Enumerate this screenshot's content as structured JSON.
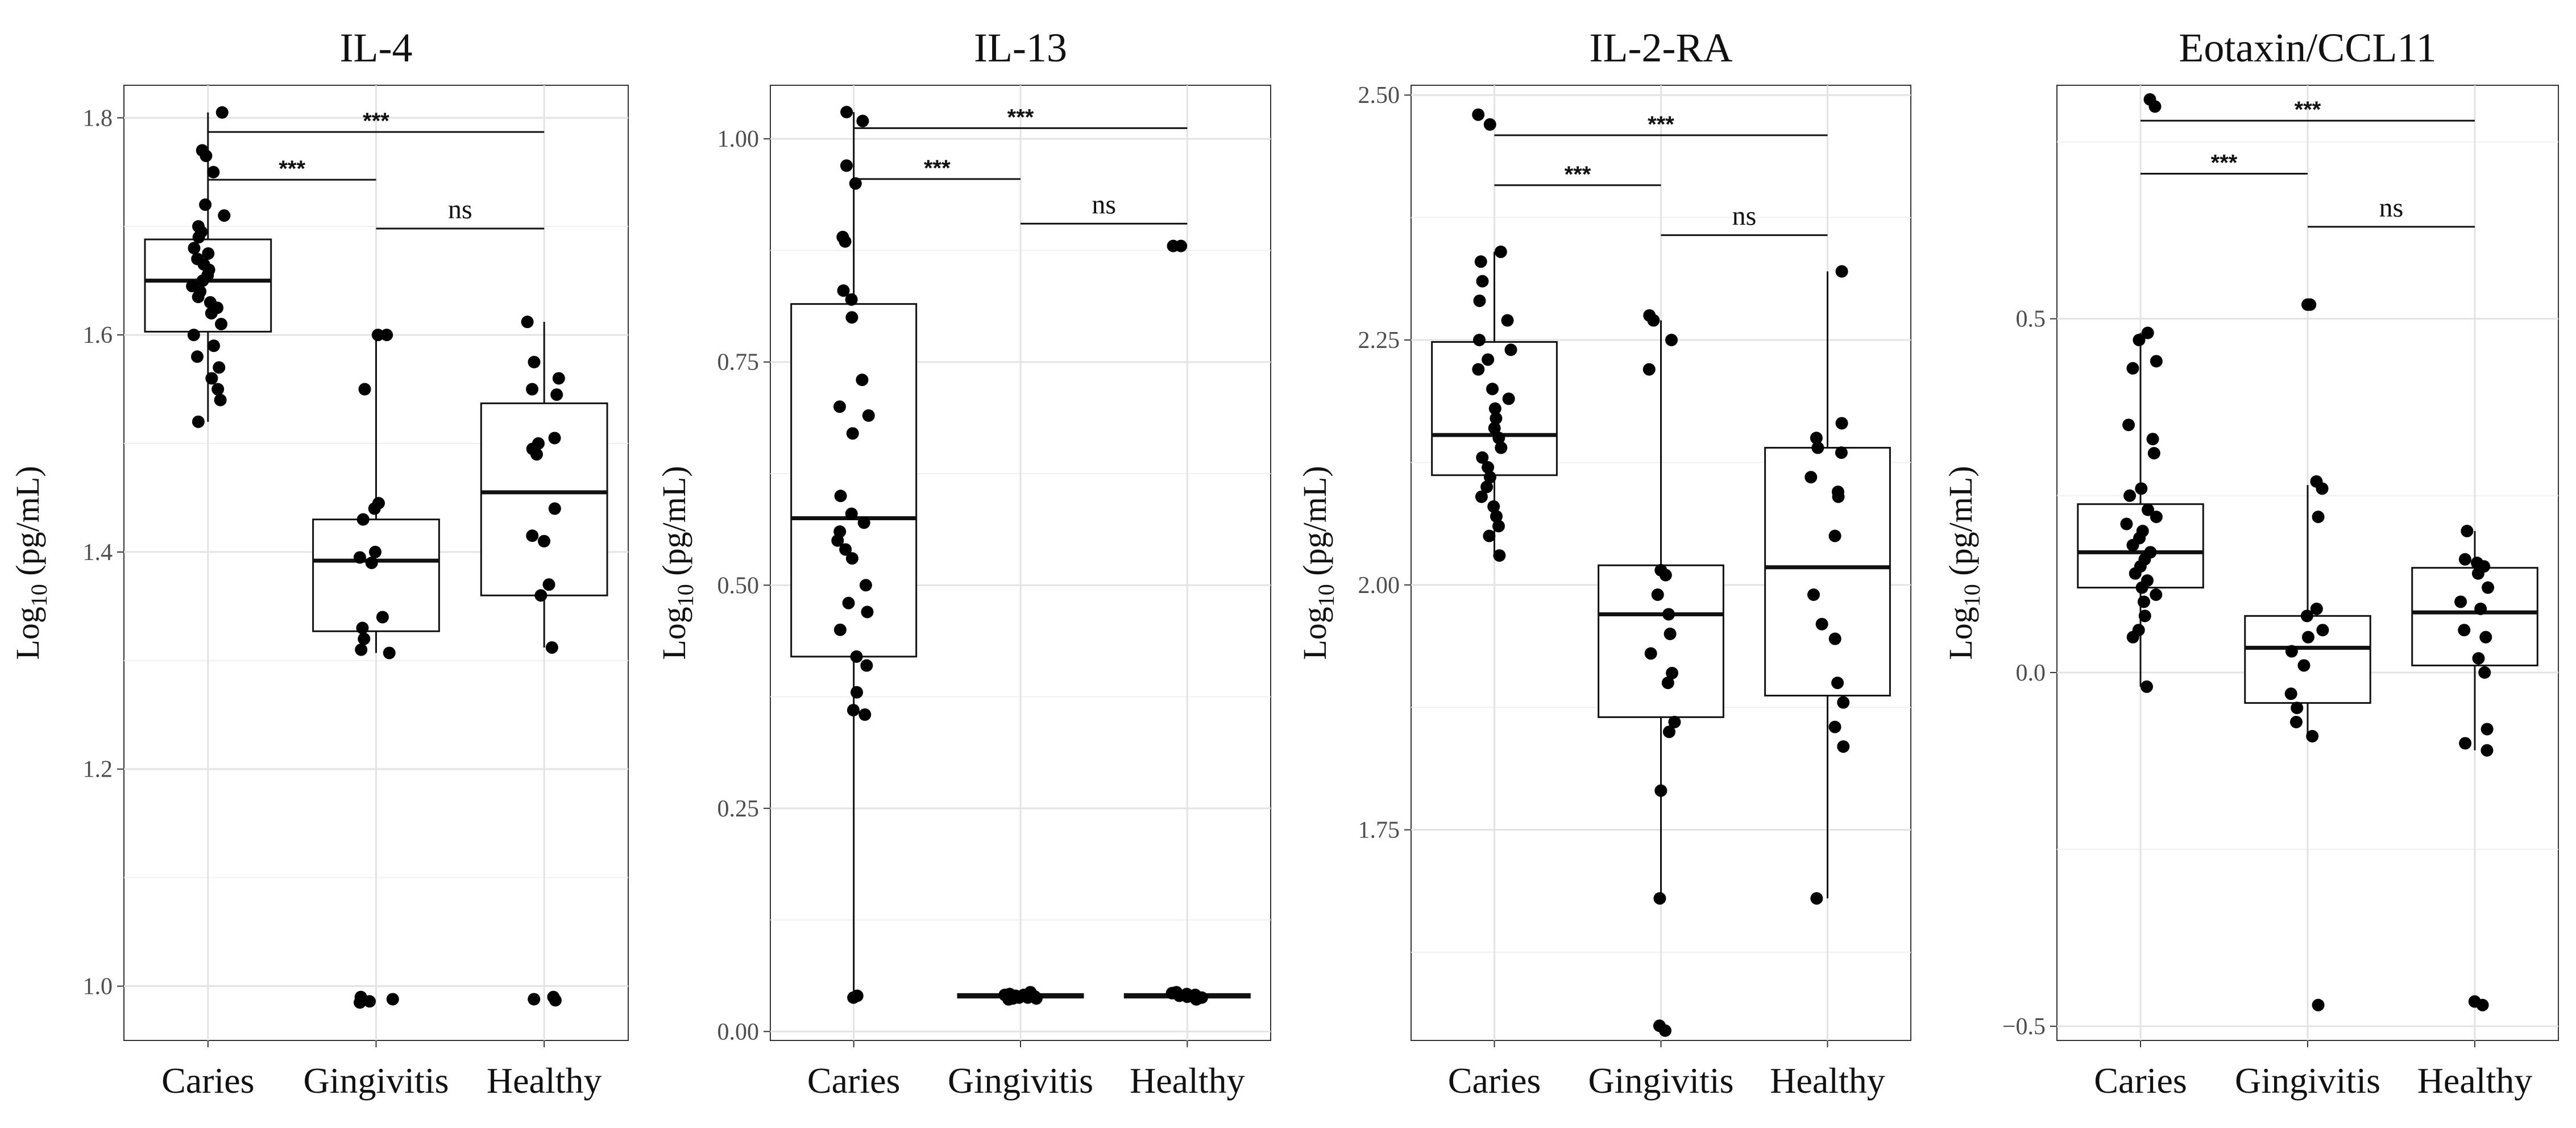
{
  "figure": {
    "panels": [
      "IL-4",
      "IL-13",
      "IL-2-RA",
      "Eotaxin/CCL11"
    ]
  },
  "chart_data": [
    {
      "type": "box",
      "title": "IL-4",
      "ylabel": "Log10 (pg/mL)",
      "ylabel_main": "Log",
      "ylabel_sub": "10",
      "ylabel_rest": " (pg/mL)",
      "xlabel": "",
      "categories": [
        "Caries",
        "Gingivitis",
        "Healthy"
      ],
      "ylim": [
        0.95,
        1.83
      ],
      "yticks": [
        1.0,
        1.2,
        1.4,
        1.6,
        1.8
      ],
      "ytick_labels": [
        "1.0",
        "1.2",
        "1.4",
        "1.6",
        "1.8"
      ],
      "grid": true,
      "boxes": [
        {
          "category": "Caries",
          "whisker_low": 1.52,
          "q1": 1.603,
          "median": 1.65,
          "q3": 1.688,
          "whisker_high": 1.805,
          "points": [
            1.805,
            1.77,
            1.765,
            1.75,
            1.72,
            1.71,
            1.7,
            1.695,
            1.69,
            1.68,
            1.675,
            1.67,
            1.665,
            1.66,
            1.655,
            1.65,
            1.645,
            1.64,
            1.635,
            1.63,
            1.625,
            1.62,
            1.61,
            1.6,
            1.59,
            1.58,
            1.57,
            1.56,
            1.55,
            1.54,
            1.52
          ]
        },
        {
          "category": "Gingivitis",
          "whisker_low": 1.307,
          "q1": 1.327,
          "median": 1.392,
          "q3": 1.43,
          "whisker_high": 1.6,
          "points": [
            1.6,
            1.6,
            1.55,
            1.445,
            1.44,
            1.43,
            1.4,
            1.395,
            1.39,
            1.34,
            1.33,
            1.32,
            1.31,
            1.307,
            0.99,
            0.988,
            0.986,
            0.985
          ]
        },
        {
          "category": "Healthy",
          "whisker_low": 1.312,
          "q1": 1.36,
          "median": 1.455,
          "q3": 1.537,
          "whisker_high": 1.612,
          "points": [
            1.612,
            1.575,
            1.56,
            1.55,
            1.545,
            1.505,
            1.5,
            1.495,
            1.49,
            1.44,
            1.415,
            1.41,
            1.37,
            1.36,
            1.312,
            0.99,
            0.988,
            0.987
          ]
        }
      ],
      "significance": [
        {
          "from": "Caries",
          "to": "Gingivitis",
          "y": 1.743,
          "label": "***"
        },
        {
          "from": "Caries",
          "to": "Healthy",
          "y": 1.787,
          "label": "***"
        },
        {
          "from": "Gingivitis",
          "to": "Healthy",
          "y": 1.698,
          "label": "ns"
        }
      ]
    },
    {
      "type": "box",
      "title": "IL-13",
      "ylabel": "Log10 (pg/mL)",
      "ylabel_main": "Log",
      "ylabel_sub": "10",
      "ylabel_rest": " (pg/mL)",
      "xlabel": "",
      "categories": [
        "Caries",
        "Gingivitis",
        "Healthy"
      ],
      "ylim": [
        -0.01,
        1.06
      ],
      "yticks": [
        0.0,
        0.25,
        0.5,
        0.75,
        1.0
      ],
      "ytick_labels": [
        "0.00",
        "0.25",
        "0.50",
        "0.75",
        "1.00"
      ],
      "grid": true,
      "boxes": [
        {
          "category": "Caries",
          "whisker_low": 0.04,
          "q1": 0.42,
          "median": 0.575,
          "q3": 0.815,
          "whisker_high": 1.03,
          "points": [
            1.03,
            1.02,
            0.97,
            0.95,
            0.89,
            0.885,
            0.83,
            0.82,
            0.8,
            0.73,
            0.7,
            0.69,
            0.67,
            0.6,
            0.58,
            0.57,
            0.56,
            0.55,
            0.54,
            0.53,
            0.5,
            0.48,
            0.47,
            0.45,
            0.42,
            0.41,
            0.38,
            0.36,
            0.355,
            0.04,
            0.038
          ]
        },
        {
          "category": "Gingivitis",
          "whisker_low": 0.037,
          "q1": 0.038,
          "median": 0.04,
          "q3": 0.042,
          "whisker_high": 0.044,
          "points": [
            0.044,
            0.043,
            0.042,
            0.041,
            0.041,
            0.04,
            0.04,
            0.039,
            0.039,
            0.038,
            0.038,
            0.037,
            0.037,
            0.036
          ]
        },
        {
          "category": "Healthy",
          "whisker_low": 0.037,
          "q1": 0.038,
          "median": 0.04,
          "q3": 0.042,
          "whisker_high": 0.044,
          "points": [
            0.88,
            0.88,
            0.044,
            0.043,
            0.042,
            0.041,
            0.04,
            0.04,
            0.039,
            0.038,
            0.038,
            0.037,
            0.036
          ]
        }
      ],
      "significance": [
        {
          "from": "Caries",
          "to": "Gingivitis",
          "y": 0.955,
          "label": "***"
        },
        {
          "from": "Caries",
          "to": "Healthy",
          "y": 1.012,
          "label": "***"
        },
        {
          "from": "Gingivitis",
          "to": "Healthy",
          "y": 0.905,
          "label": "ns"
        }
      ]
    },
    {
      "type": "box",
      "title": "IL-2-RA",
      "ylabel": "Log10 (pg/mL)",
      "ylabel_main": "Log",
      "ylabel_sub": "10",
      "ylabel_rest": " (pg/mL)",
      "xlabel": "",
      "categories": [
        "Caries",
        "Gingivitis",
        "Healthy"
      ],
      "ylim": [
        1.535,
        2.51
      ],
      "yticks": [
        1.75,
        2.0,
        2.25,
        2.5
      ],
      "ytick_labels": [
        "1.75",
        "2.00",
        "2.25",
        "2.50"
      ],
      "grid": true,
      "boxes": [
        {
          "category": "Caries",
          "whisker_low": 2.03,
          "q1": 2.112,
          "median": 2.153,
          "q3": 2.248,
          "whisker_high": 2.34,
          "points": [
            2.48,
            2.47,
            2.34,
            2.33,
            2.31,
            2.29,
            2.27,
            2.25,
            2.24,
            2.23,
            2.22,
            2.2,
            2.19,
            2.18,
            2.17,
            2.16,
            2.15,
            2.14,
            2.13,
            2.12,
            2.11,
            2.1,
            2.09,
            2.08,
            2.07,
            2.06,
            2.05,
            2.03
          ]
        },
        {
          "category": "Gingivitis",
          "whisker_low": 1.68,
          "q1": 1.865,
          "median": 1.97,
          "q3": 2.02,
          "whisker_high": 2.27,
          "points": [
            2.275,
            2.27,
            2.25,
            2.22,
            2.015,
            2.01,
            1.99,
            1.97,
            1.95,
            1.93,
            1.91,
            1.9,
            1.86,
            1.85,
            1.79,
            1.68,
            1.55,
            1.545
          ]
        },
        {
          "category": "Healthy",
          "whisker_low": 1.68,
          "q1": 1.887,
          "median": 2.018,
          "q3": 2.14,
          "whisker_high": 2.32,
          "points": [
            2.32,
            2.165,
            2.15,
            2.14,
            2.135,
            2.11,
            2.095,
            2.09,
            2.05,
            1.99,
            1.96,
            1.945,
            1.9,
            1.88,
            1.855,
            1.835,
            1.68
          ]
        }
      ],
      "significance": [
        {
          "from": "Caries",
          "to": "Gingivitis",
          "y": 2.408,
          "label": "***"
        },
        {
          "from": "Caries",
          "to": "Healthy",
          "y": 2.459,
          "label": "***"
        },
        {
          "from": "Gingivitis",
          "to": "Healthy",
          "y": 2.357,
          "label": "ns"
        }
      ]
    },
    {
      "type": "box",
      "title": "Eotaxin/CCL11",
      "ylabel": "Log10 (pg/mL)",
      "ylabel_main": "Log",
      "ylabel_sub": "10",
      "ylabel_rest": " (pg/mL)",
      "xlabel": "",
      "categories": [
        "Caries",
        "Gingivitis",
        "Healthy"
      ],
      "ylim": [
        -0.52,
        0.83
      ],
      "yticks": [
        -0.5,
        0.0,
        0.5
      ],
      "ytick_labels": [
        "−0.5",
        "0.0",
        "0.5"
      ],
      "grid": true,
      "boxes": [
        {
          "category": "Caries",
          "whisker_low": -0.02,
          "q1": 0.12,
          "median": 0.17,
          "q3": 0.238,
          "whisker_high": 0.48,
          "points": [
            0.81,
            0.8,
            0.48,
            0.47,
            0.44,
            0.43,
            0.35,
            0.33,
            0.31,
            0.26,
            0.25,
            0.23,
            0.22,
            0.21,
            0.2,
            0.19,
            0.18,
            0.17,
            0.16,
            0.15,
            0.14,
            0.13,
            0.12,
            0.11,
            0.1,
            0.08,
            0.06,
            0.05,
            -0.02
          ]
        },
        {
          "category": "Gingivitis",
          "whisker_low": -0.09,
          "q1": -0.043,
          "median": 0.035,
          "q3": 0.08,
          "whisker_high": 0.265,
          "points": [
            0.52,
            0.52,
            0.27,
            0.26,
            0.22,
            0.09,
            0.08,
            0.06,
            0.05,
            0.03,
            0.01,
            -0.03,
            -0.05,
            -0.07,
            -0.09,
            -0.47
          ]
        },
        {
          "category": "Healthy",
          "whisker_low": -0.11,
          "q1": 0.01,
          "median": 0.085,
          "q3": 0.148,
          "whisker_high": 0.2,
          "points": [
            0.2,
            0.16,
            0.155,
            0.15,
            0.14,
            0.12,
            0.1,
            0.09,
            0.06,
            0.05,
            0.02,
            0.0,
            -0.08,
            -0.1,
            -0.11,
            -0.465,
            -0.47
          ]
        }
      ],
      "significance": [
        {
          "from": "Caries",
          "to": "Gingivitis",
          "y": 0.705,
          "label": "***"
        },
        {
          "from": "Caries",
          "to": "Healthy",
          "y": 0.78,
          "label": "***"
        },
        {
          "from": "Gingivitis",
          "to": "Healthy",
          "y": 0.63,
          "label": "ns"
        }
      ]
    }
  ]
}
